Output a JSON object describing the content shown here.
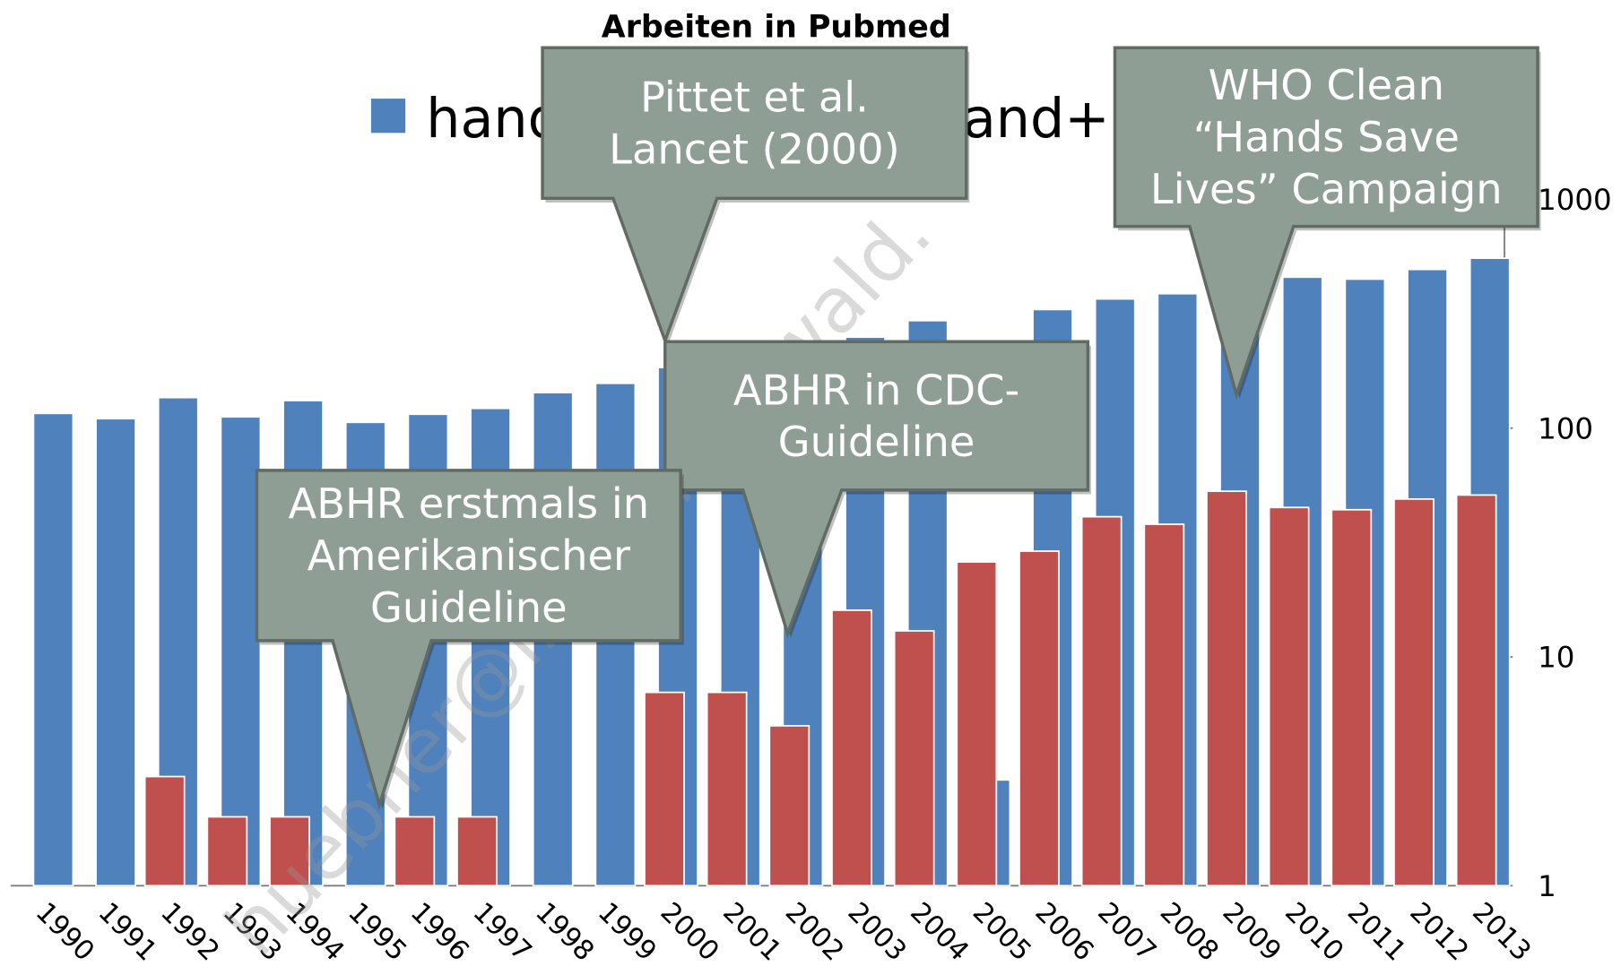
{
  "chart_data": {
    "type": "bar",
    "title": "Arbeiten in Pubmed",
    "log_scale": true,
    "categories": [
      "1990",
      "1991",
      "1992",
      "1993",
      "1994",
      "1995",
      "1996",
      "1997",
      "1998",
      "1999",
      "2000",
      "2001",
      "2002",
      "2003",
      "2004",
      "2005",
      "2006",
      "2007",
      "2008",
      "2009",
      "2010",
      "2011",
      "2012",
      "2013"
    ],
    "series": [
      {
        "name": "hand",
        "color": "#4f81bd",
        "values": [
          116,
          110,
          136,
          112,
          132,
          106,
          115,
          122,
          143,
          157,
          184,
          200,
          220,
          250,
          295,
          2.9,
          330,
          367,
          387,
          420,
          457,
          448,
          494,
          553
        ]
      },
      {
        "name": "and+",
        "color": "#c0504d",
        "values": [
          null,
          null,
          3,
          2,
          2,
          null,
          2,
          2,
          null,
          null,
          7,
          7,
          5,
          16,
          13,
          26,
          29,
          41,
          38,
          53,
          45,
          44,
          49,
          51
        ]
      }
    ],
    "ylim": [
      1,
      1000
    ],
    "yticks": [
      1,
      10,
      100,
      1000
    ],
    "annotations": [
      {
        "lines": [
          "Pittet  et al.",
          "Lancet (2000)"
        ]
      },
      {
        "lines": [
          "WHO Clean",
          "“Hands Save",
          "Lives” Campaign"
        ]
      },
      {
        "lines": [
          "ABHR in CDC-",
          "Guideline"
        ]
      },
      {
        "lines": [
          "ABHR erstmals in",
          "Amerikanischer",
          "Guideline"
        ]
      }
    ],
    "watermark": "huebner@imd-greifswald."
  }
}
